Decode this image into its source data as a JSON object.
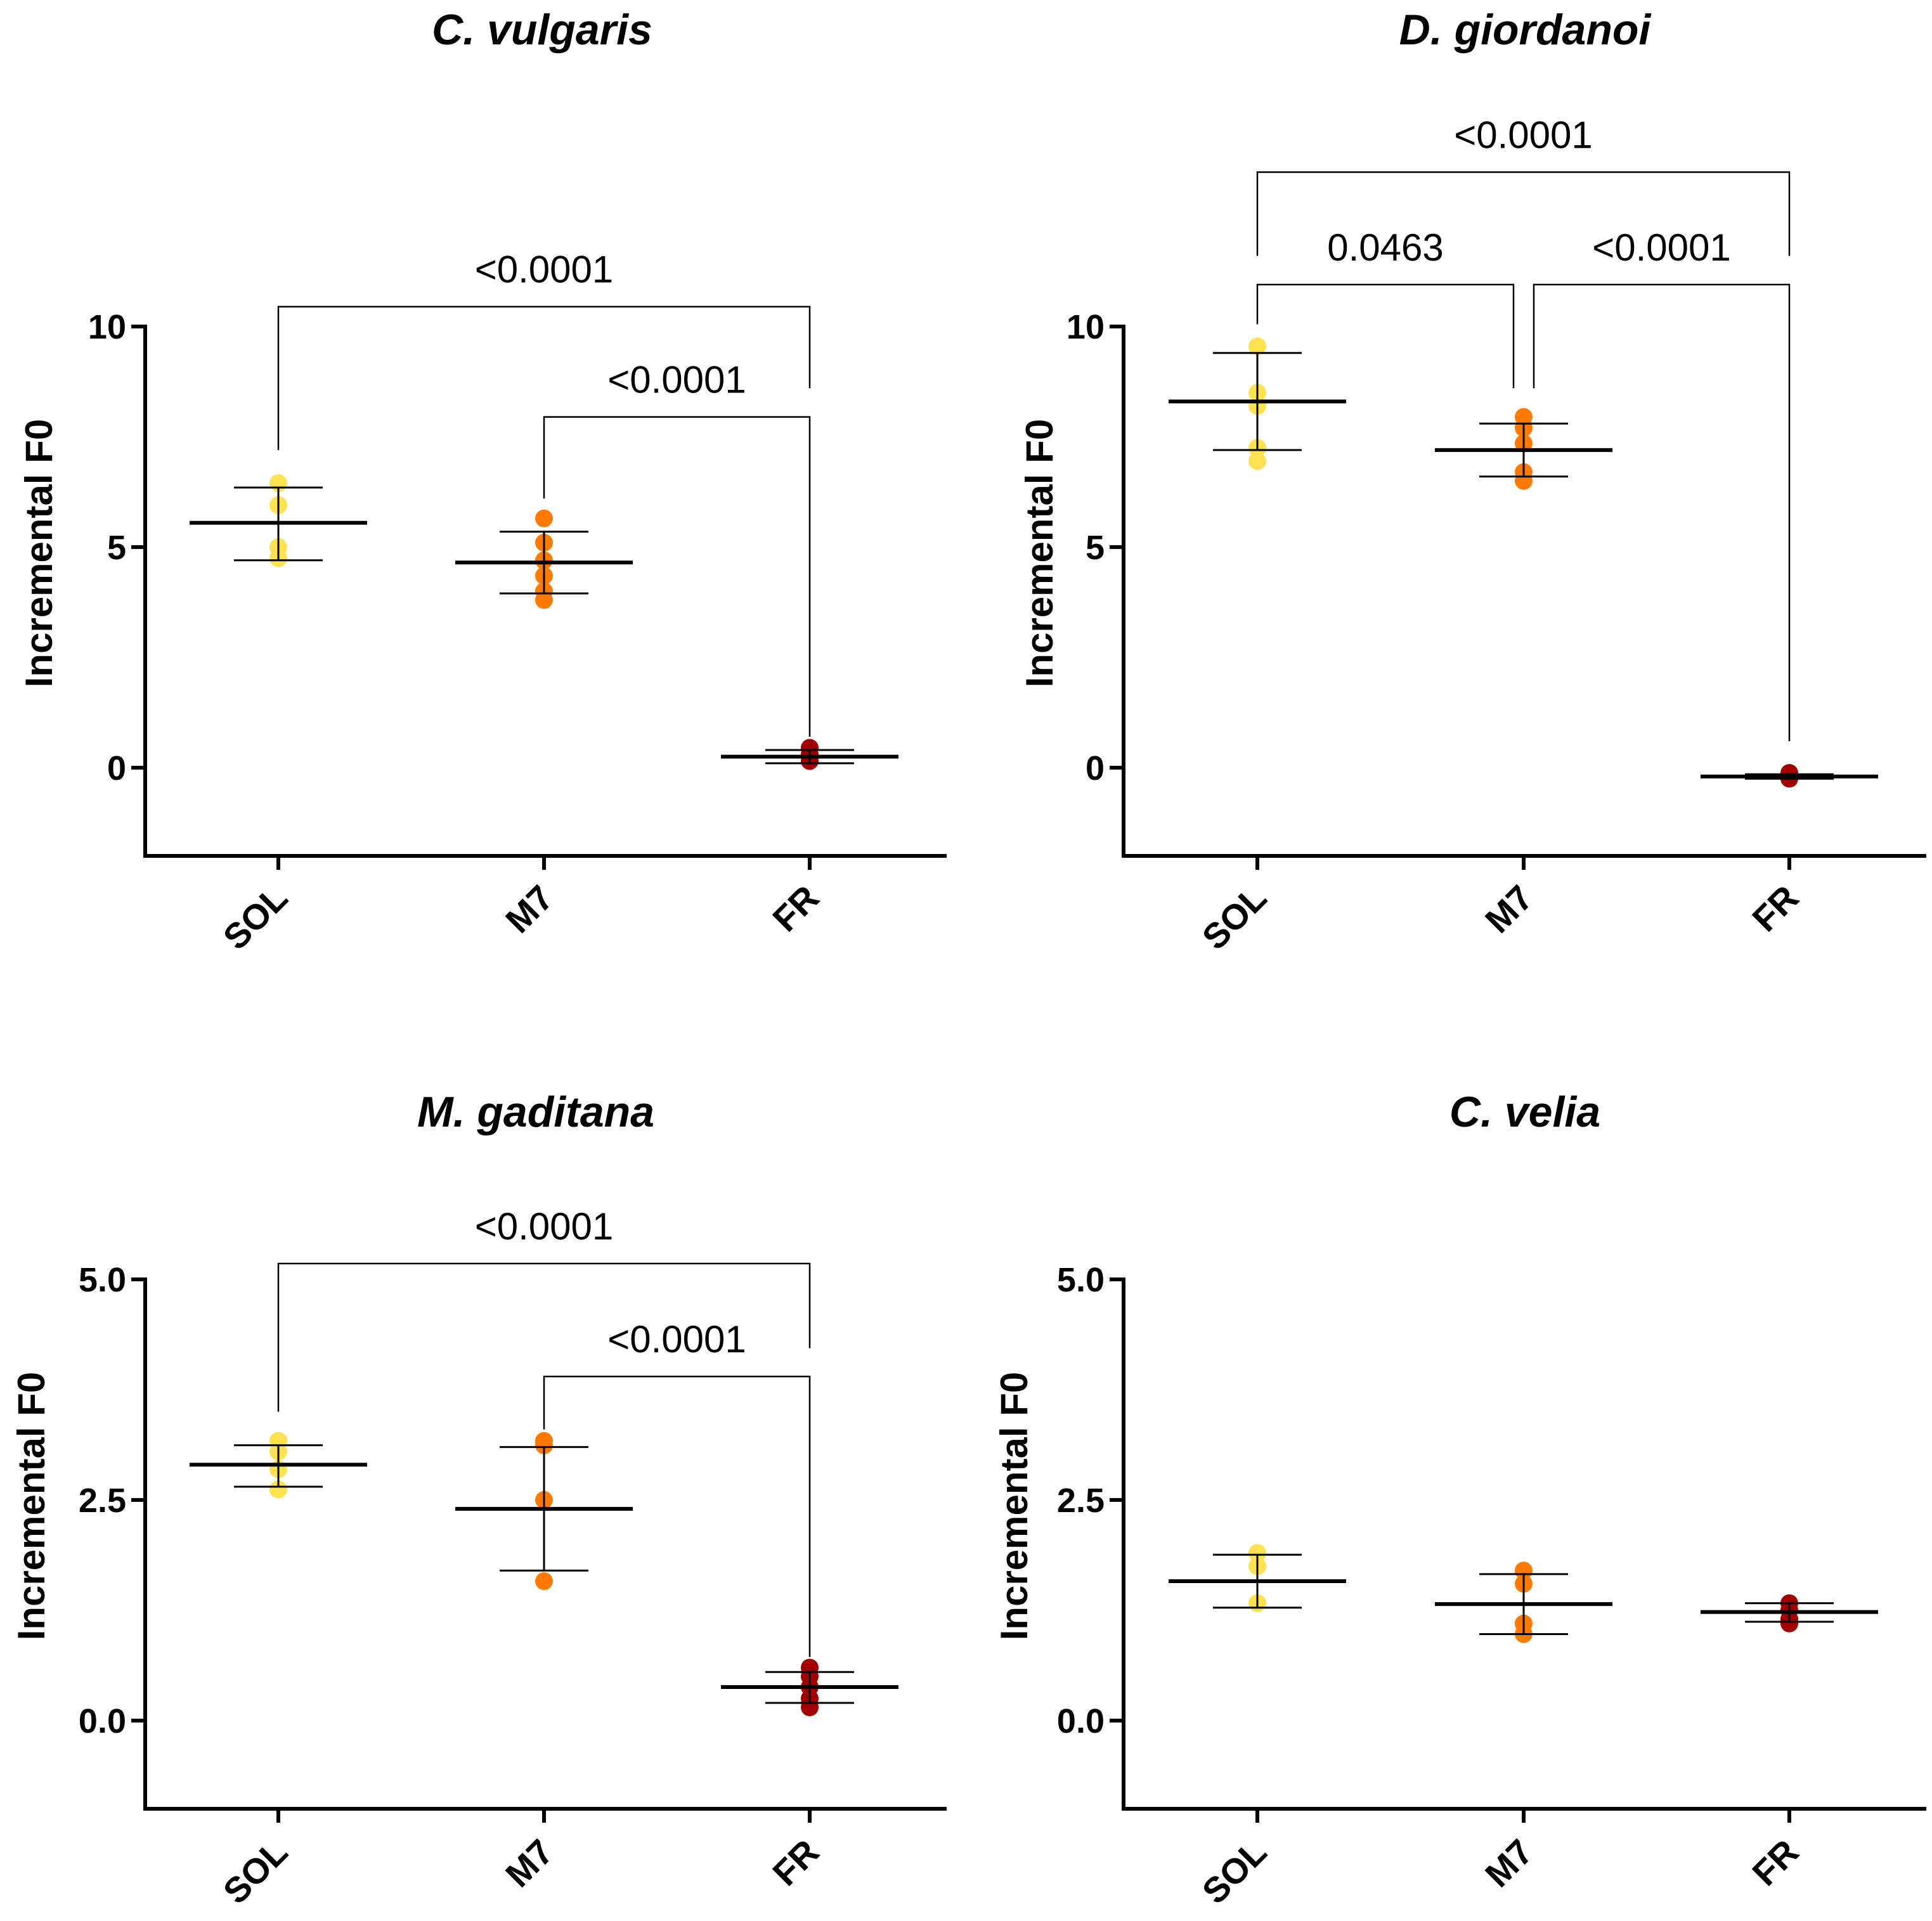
{
  "chart_data": [
    {
      "type": "scatter",
      "title": "C. vulgaris",
      "ylabel": "Incremental F0",
      "ylim": [
        -2,
        10
      ],
      "yticks": [
        0,
        5,
        10
      ],
      "ytick_labels": [
        "0",
        "5",
        "10"
      ],
      "categories": [
        "SOL",
        "M7",
        "FR"
      ],
      "colors": [
        "#FFE252",
        "#FF7A00",
        "#A00000"
      ],
      "groups": [
        {
          "name": "SOL",
          "mean": 5.55,
          "sd_low": 4.7,
          "sd_high": 6.35,
          "points": [
            6.45,
            5.95,
            5.0,
            4.75
          ]
        },
        {
          "name": "M7",
          "mean": 4.65,
          "sd_low": 3.95,
          "sd_high": 5.35,
          "points": [
            5.65,
            5.1,
            4.7,
            4.35,
            4.0,
            3.8
          ]
        },
        {
          "name": "FR",
          "mean": 0.25,
          "sd_low": 0.1,
          "sd_high": 0.4,
          "points": [
            0.45,
            0.3,
            0.15
          ]
        }
      ],
      "comparisons": [
        {
          "from": "SOL",
          "to": "FR",
          "label": "<0.0001",
          "bar_y": 10.45,
          "left_drop": 7.2,
          "right_drop": 8.6
        },
        {
          "from": "M7",
          "to": "FR",
          "label": "<0.0001",
          "bar_y": 7.95,
          "left_drop": 6.1,
          "right_drop": 0.7
        }
      ]
    },
    {
      "type": "scatter",
      "title": "D. giordanoi",
      "ylabel": "Incremental F0",
      "ylim": [
        -2,
        10
      ],
      "yticks": [
        0,
        5,
        10
      ],
      "ytick_labels": [
        "0",
        "5",
        "10"
      ],
      "categories": [
        "SOL",
        "M7",
        "FR"
      ],
      "colors": [
        "#FFE252",
        "#FF7A00",
        "#A00000"
      ],
      "groups": [
        {
          "name": "SOL",
          "mean": 8.3,
          "sd_low": 7.2,
          "sd_high": 9.4,
          "points": [
            9.55,
            8.5,
            8.2,
            7.25,
            6.95
          ]
        },
        {
          "name": "M7",
          "mean": 7.2,
          "sd_low": 6.6,
          "sd_high": 7.8,
          "points": [
            7.95,
            7.7,
            7.35,
            6.7,
            6.5
          ]
        },
        {
          "name": "FR",
          "mean": -0.2,
          "sd_low": -0.25,
          "sd_high": -0.15,
          "points": [
            -0.12,
            -0.2,
            -0.25
          ]
        }
      ],
      "comparisons": [
        {
          "from": "SOL",
          "to": "FR",
          "label": "<0.0001",
          "bar_y": 13.5,
          "left_drop": 11.6,
          "right_drop": 11.6
        },
        {
          "from": "SOL",
          "to": "M7",
          "label": "0.0463",
          "bar_y": 10.95,
          "left_drop": 10.05,
          "right_drop": 8.6
        },
        {
          "from": "M7",
          "to": "FR",
          "label": "<0.0001",
          "bar_y": 10.95,
          "left_drop": 8.6,
          "right_drop": 0.6
        }
      ]
    },
    {
      "type": "scatter",
      "title": "M. gaditana",
      "ylabel": "Incremental F0",
      "ylim": [
        -1,
        5
      ],
      "yticks": [
        0,
        2.5,
        5
      ],
      "ytick_labels": [
        "0.0",
        "2.5",
        "5.0"
      ],
      "categories": [
        "SOL",
        "M7",
        "FR"
      ],
      "colors": [
        "#FFE252",
        "#FF7A00",
        "#A00000"
      ],
      "groups": [
        {
          "name": "SOL",
          "mean": 2.9,
          "sd_low": 2.65,
          "sd_high": 3.12,
          "points": [
            3.17,
            3.05,
            2.85,
            2.62
          ]
        },
        {
          "name": "M7",
          "mean": 2.4,
          "sd_low": 1.7,
          "sd_high": 3.1,
          "points": [
            3.17,
            3.12,
            2.5,
            1.58
          ]
        },
        {
          "name": "FR",
          "mean": 0.38,
          "sd_low": 0.2,
          "sd_high": 0.55,
          "points": [
            0.6,
            0.5,
            0.38,
            0.25,
            0.15
          ]
        }
      ],
      "comparisons": [
        {
          "from": "SOL",
          "to": "FR",
          "label": "<0.0001",
          "bar_y": 5.18,
          "left_drop": 3.5,
          "right_drop": 4.22
        },
        {
          "from": "M7",
          "to": "FR",
          "label": "<0.0001",
          "bar_y": 3.9,
          "left_drop": 3.3,
          "right_drop": 0.72
        }
      ]
    },
    {
      "type": "scatter",
      "title": "C. velia",
      "ylabel": "Incremental F0",
      "ylim": [
        -1,
        5
      ],
      "yticks": [
        0,
        2.5,
        5
      ],
      "ytick_labels": [
        "0.0",
        "2.5",
        "5.0"
      ],
      "categories": [
        "SOL",
        "M7",
        "FR"
      ],
      "colors": [
        "#FFE252",
        "#FF7A00",
        "#A00000"
      ],
      "groups": [
        {
          "name": "SOL",
          "mean": 1.58,
          "sd_low": 1.28,
          "sd_high": 1.88,
          "points": [
            1.9,
            1.75,
            1.33
          ]
        },
        {
          "name": "M7",
          "mean": 1.32,
          "sd_low": 0.98,
          "sd_high": 1.66,
          "points": [
            1.7,
            1.55,
            1.1,
            0.98
          ]
        },
        {
          "name": "FR",
          "mean": 1.23,
          "sd_low": 1.12,
          "sd_high": 1.33,
          "points": [
            1.33,
            1.25,
            1.15,
            1.1
          ]
        }
      ],
      "comparisons": []
    }
  ]
}
